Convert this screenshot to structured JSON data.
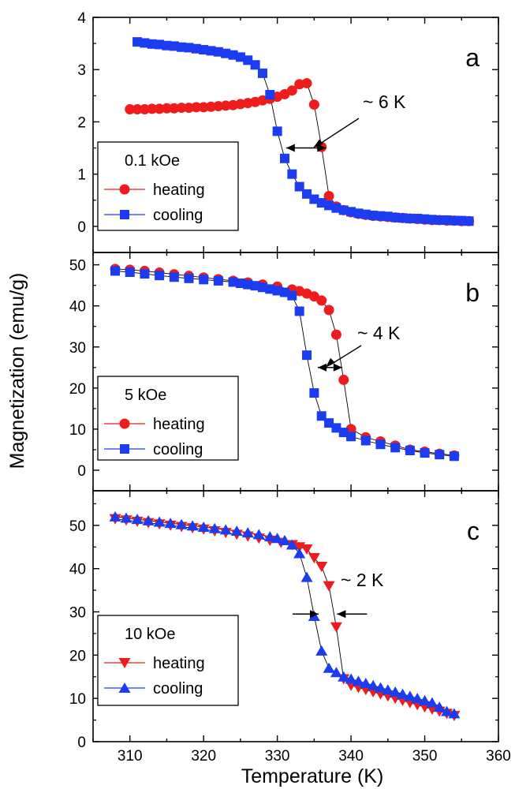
{
  "chart_data": [
    {
      "type": "scatter",
      "panel": "a",
      "panel_label": "a",
      "xlim": [
        305,
        360
      ],
      "ylim": [
        -0.5,
        4
      ],
      "y_ticks": [
        0,
        1,
        2,
        3,
        4
      ],
      "y_tick_labels": [
        "0",
        "1",
        "2",
        "3",
        "4"
      ],
      "legend": {
        "field": "0.1 kOe",
        "placement": "bottom-left"
      },
      "annotation": "~ 6 K",
      "width_arrow": {
        "type": "double",
        "y": 1.5,
        "x1": 331.2,
        "x2": 336.6
      },
      "series": [
        {
          "name": "heating",
          "color": "#ee1c1c",
          "marker": "circle",
          "x": [
            310,
            311,
            312,
            313,
            314,
            315,
            316,
            317,
            318,
            319,
            320,
            321,
            322,
            323,
            324,
            325,
            326,
            327,
            328,
            329,
            330,
            331,
            332,
            333,
            334,
            335,
            336,
            337,
            338,
            339,
            340,
            341,
            342,
            343,
            344,
            345,
            346,
            347,
            348,
            349,
            350,
            351,
            352,
            353,
            354,
            355,
            356
          ],
          "y": [
            2.24,
            2.24,
            2.24,
            2.25,
            2.25,
            2.26,
            2.26,
            2.27,
            2.27,
            2.28,
            2.28,
            2.29,
            2.3,
            2.31,
            2.32,
            2.34,
            2.36,
            2.38,
            2.41,
            2.44,
            2.48,
            2.53,
            2.6,
            2.72,
            2.74,
            2.33,
            1.52,
            0.58,
            0.38,
            0.31,
            0.27,
            0.24,
            0.22,
            0.2,
            0.19,
            0.18,
            0.17,
            0.16,
            0.15,
            0.14,
            0.13,
            0.12,
            0.12,
            0.11,
            0.11,
            0.1,
            0.1
          ]
        },
        {
          "name": "cooling",
          "color": "#1c3cf0",
          "marker": "square",
          "x": [
            311,
            312,
            313,
            314,
            315,
            316,
            317,
            318,
            319,
            320,
            321,
            322,
            323,
            324,
            325,
            326,
            327,
            328,
            329,
            330,
            331,
            332,
            333,
            334,
            335,
            336,
            337,
            338,
            339,
            340,
            341,
            342,
            343,
            344,
            345,
            346,
            347,
            348,
            349,
            350,
            351,
            352,
            353,
            354,
            355,
            356
          ],
          "y": [
            3.53,
            3.51,
            3.49,
            3.48,
            3.46,
            3.45,
            3.43,
            3.42,
            3.4,
            3.38,
            3.36,
            3.34,
            3.31,
            3.28,
            3.24,
            3.18,
            3.09,
            2.93,
            2.52,
            1.82,
            1.3,
            1.0,
            0.76,
            0.62,
            0.52,
            0.45,
            0.4,
            0.35,
            0.31,
            0.28,
            0.25,
            0.23,
            0.21,
            0.2,
            0.19,
            0.17,
            0.16,
            0.15,
            0.15,
            0.14,
            0.13,
            0.12,
            0.12,
            0.11,
            0.11,
            0.1
          ]
        }
      ]
    },
    {
      "type": "scatter",
      "panel": "b",
      "panel_label": "b",
      "xlim": [
        305,
        360
      ],
      "ylim": [
        -5,
        53
      ],
      "y_ticks": [
        0,
        10,
        20,
        30,
        40,
        50
      ],
      "y_tick_labels": [
        "0",
        "10",
        "20",
        "30",
        "40",
        "50"
      ],
      "legend": {
        "field": "5 kOe",
        "placement": "bottom-left"
      },
      "annotation": "~ 4 K",
      "width_arrow": {
        "type": "double",
        "y": 25,
        "x1": 335.5,
        "x2": 338.8
      },
      "series": [
        {
          "name": "heating",
          "color": "#ee1c1c",
          "marker": "circle",
          "x": [
            308,
            310,
            312,
            314,
            316,
            318,
            320,
            322,
            324,
            326,
            328,
            330,
            332,
            333,
            334,
            335,
            336,
            337,
            338,
            339,
            340,
            342,
            344,
            346,
            348,
            350,
            352,
            354
          ],
          "y": [
            49,
            48.8,
            48.5,
            48.1,
            47.7,
            47.3,
            46.9,
            46.5,
            46.1,
            45.7,
            45.2,
            44.7,
            44,
            43.6,
            43,
            42.3,
            41.3,
            39,
            33,
            22,
            10,
            8,
            7,
            6,
            5,
            4.5,
            4,
            3.6
          ]
        },
        {
          "name": "cooling",
          "color": "#1c3cf0",
          "marker": "square",
          "x": [
            308,
            310,
            312,
            314,
            316,
            318,
            320,
            322,
            324,
            325,
            326,
            327,
            328,
            329,
            330,
            331,
            332,
            333,
            334,
            335,
            336,
            337,
            338,
            339,
            340,
            342,
            344,
            346,
            348,
            350,
            352,
            354
          ],
          "y": [
            48.5,
            48.2,
            47.8,
            47.4,
            47,
            46.7,
            46.4,
            46.1,
            45.8,
            45.5,
            45.2,
            44.9,
            44.5,
            44.1,
            43.7,
            43.3,
            42.5,
            38.7,
            28,
            18.8,
            13.2,
            11.5,
            10.3,
            9.2,
            8.2,
            7.2,
            6.3,
            5.5,
            4.8,
            4.2,
            3.8,
            3.4
          ]
        }
      ]
    },
    {
      "type": "scatter",
      "panel": "c",
      "panel_label": "c",
      "xlim": [
        305,
        360
      ],
      "ylim": [
        0,
        58
      ],
      "y_ticks": [
        0,
        10,
        20,
        30,
        40,
        50
      ],
      "y_tick_labels": [
        "0",
        "10",
        "20",
        "30",
        "40",
        "50"
      ],
      "x_ticks": [
        310,
        320,
        330,
        340,
        350,
        360
      ],
      "x_tick_labels": [
        "310",
        "320",
        "330",
        "340",
        "350",
        "360"
      ],
      "xlabel": "Temperature (K)",
      "legend": {
        "field": "10 kOe",
        "placement": "bottom-left"
      },
      "annotation": "~ 2 K",
      "width_arrow": {
        "type": "pair",
        "y": 29.5,
        "x_left": 335.6,
        "x_right": 338.1
      },
      "series": [
        {
          "name": "heating",
          "color": "#ee1c1c",
          "marker": "triangle-down",
          "x": [
            308,
            309.5,
            311,
            312.5,
            314,
            315.5,
            317,
            318.5,
            320,
            321.5,
            323,
            324.5,
            326,
            327.5,
            329,
            330.5,
            332,
            333,
            334,
            335,
            336,
            337,
            338,
            339,
            340,
            341,
            342,
            343,
            344,
            345,
            346,
            347,
            348,
            349,
            350,
            351,
            352,
            353,
            354
          ],
          "y": [
            51.5,
            51.2,
            50.9,
            50.6,
            50.3,
            50,
            49.7,
            49.4,
            49.1,
            48.7,
            48.3,
            47.9,
            47.5,
            47,
            46.5,
            46,
            45.5,
            45,
            44.5,
            42.5,
            40.5,
            36,
            26.5,
            14.5,
            13,
            12.5,
            12,
            11.5,
            11,
            10.5,
            10,
            9.5,
            9,
            8.5,
            8,
            7.5,
            7,
            6.5,
            6
          ]
        },
        {
          "name": "cooling",
          "color": "#1c3cf0",
          "marker": "triangle-up",
          "x": [
            308,
            309.5,
            311,
            312.5,
            314,
            315.5,
            317,
            318.5,
            320,
            321.5,
            323,
            324.5,
            326,
            327.5,
            329,
            330,
            331,
            332,
            333,
            334,
            335,
            336,
            337,
            338,
            339,
            340,
            341,
            342,
            343,
            344,
            345,
            346,
            347,
            348,
            349,
            350,
            351,
            352,
            353,
            354
          ],
          "y": [
            52,
            51.7,
            51.4,
            51.1,
            50.8,
            50.5,
            50.2,
            49.9,
            49.6,
            49.3,
            49,
            48.7,
            48.3,
            47.9,
            47.4,
            47,
            46.5,
            45.5,
            43.5,
            38,
            29,
            21,
            17,
            16,
            15,
            14.5,
            14,
            13.5,
            13,
            12.5,
            12,
            11.5,
            11,
            10.5,
            10,
            9.5,
            9,
            8,
            7,
            6.5
          ]
        }
      ]
    }
  ],
  "shared": {
    "ylabel": "Magnetization (emu/g)",
    "xlabel": "Temperature (K)"
  }
}
